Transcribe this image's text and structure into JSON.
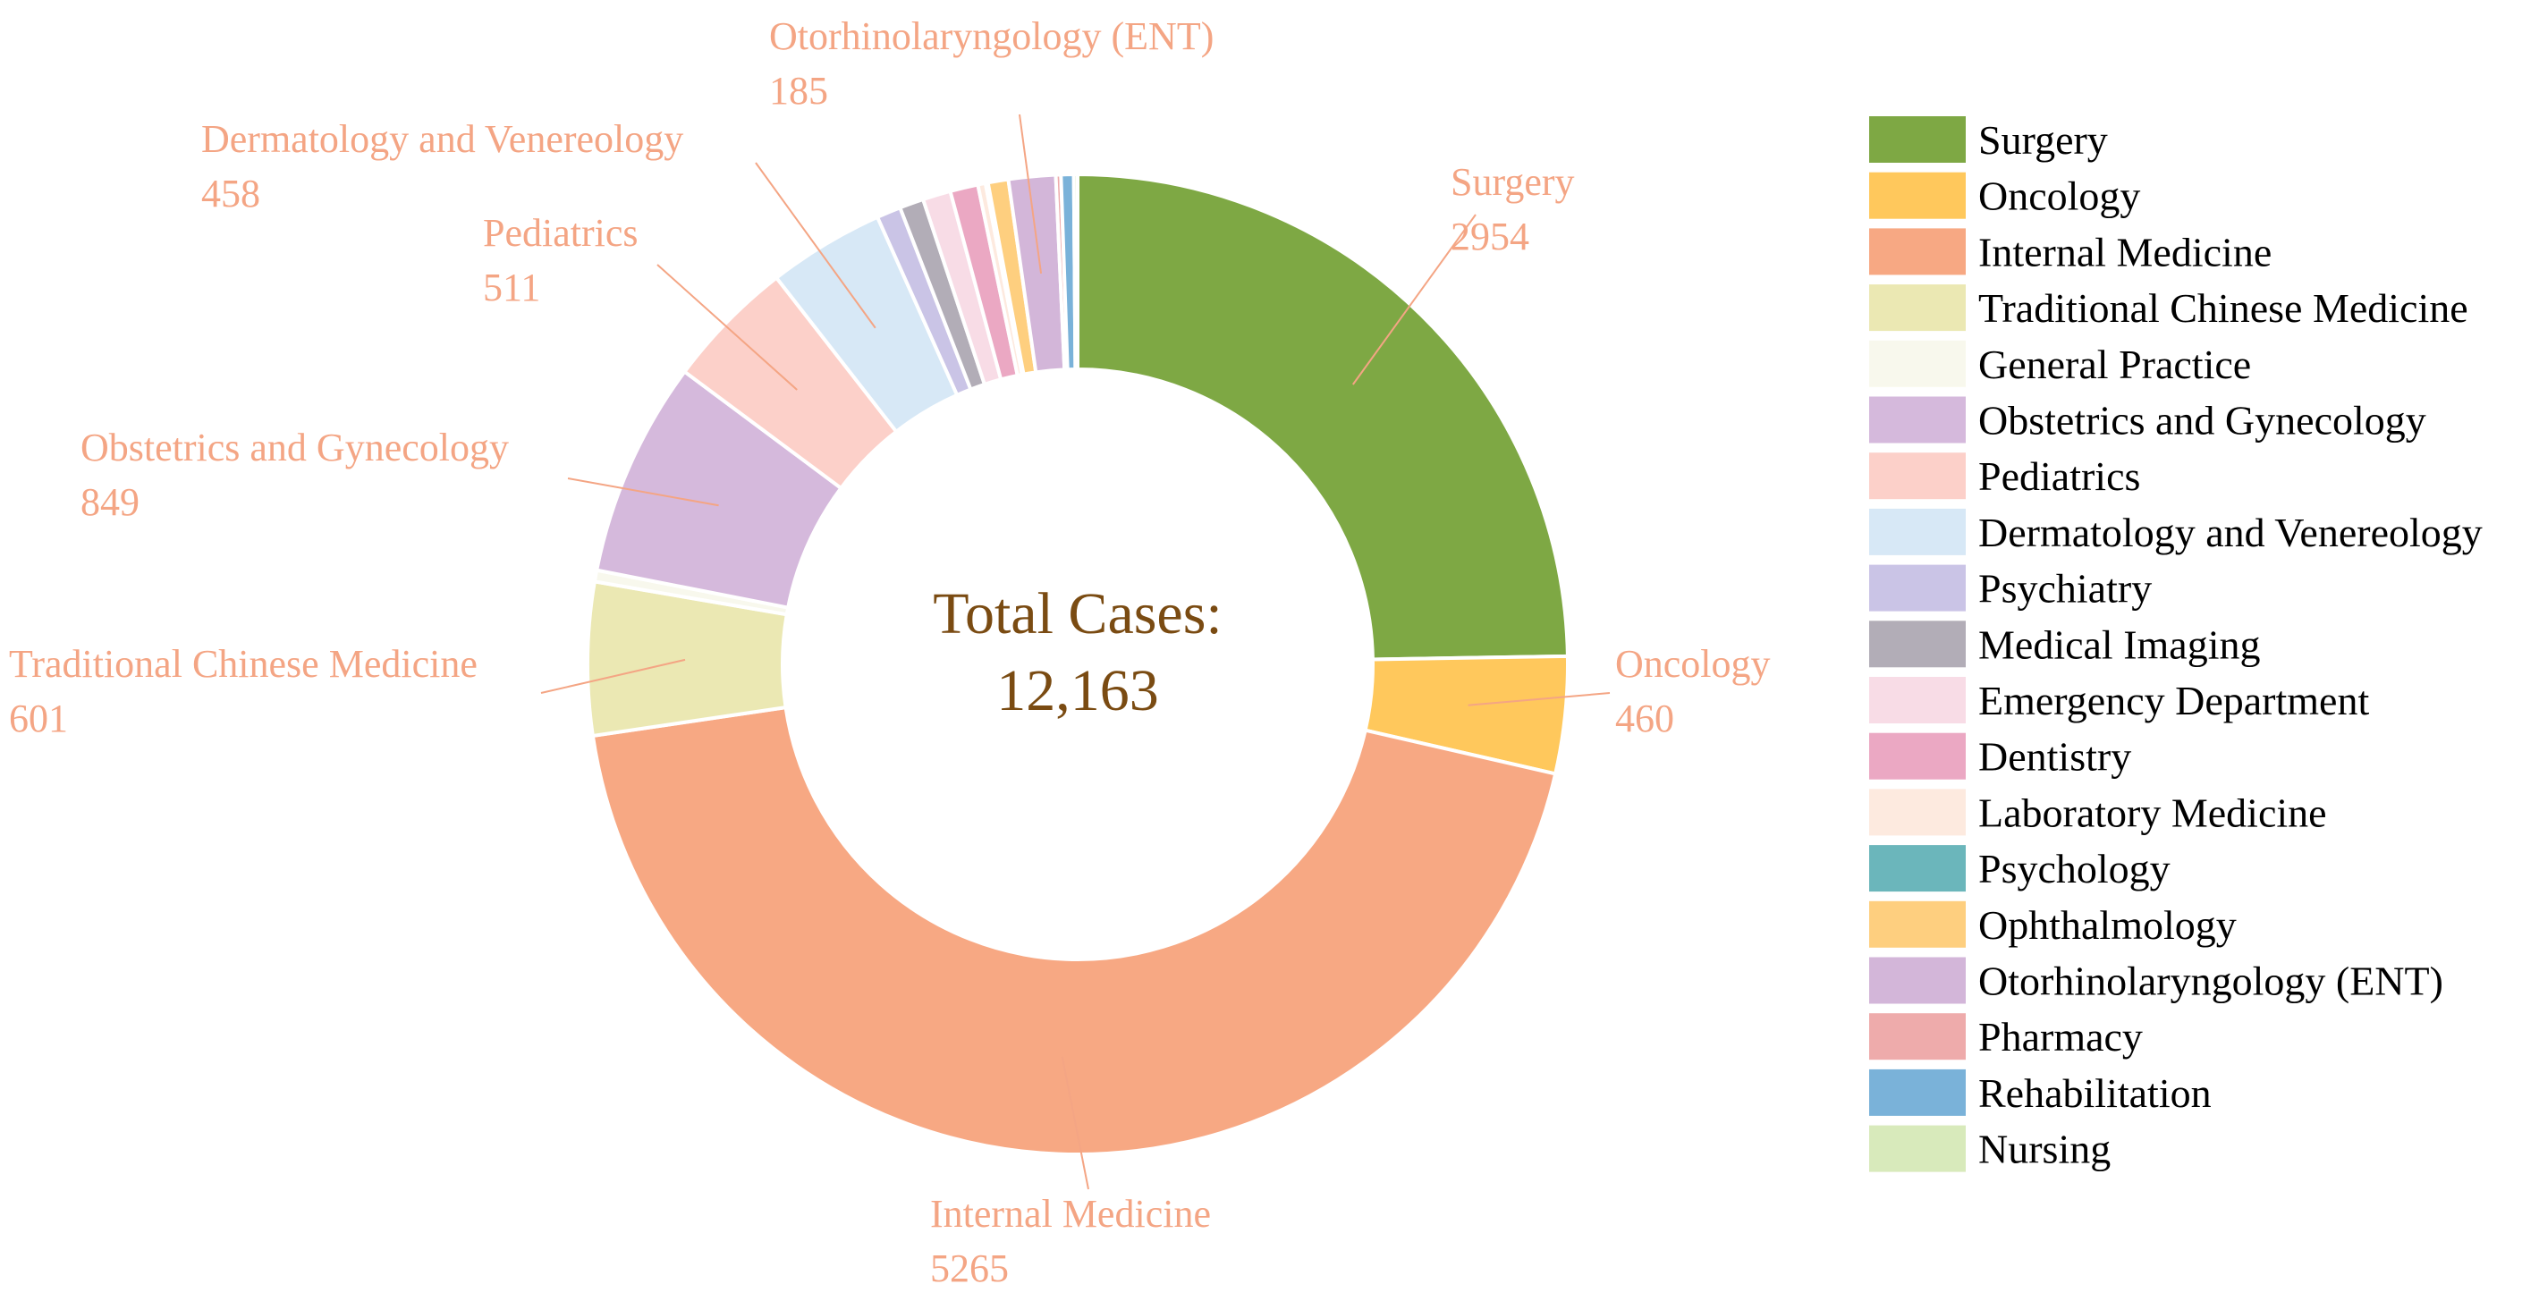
{
  "chart_data": {
    "type": "pie",
    "variant": "donut",
    "center_label": [
      "Total Cases:",
      "12,163"
    ],
    "total": 12163,
    "start_category": "Surgery",
    "direction": "clockwise",
    "legend_position": "right",
    "callout_color": "#f4a584",
    "center_color": "#7a4b12",
    "slices": [
      {
        "label": "Surgery",
        "value": 2954,
        "color": "#7ea844",
        "callout": [
          "Surgery",
          "2954"
        ]
      },
      {
        "label": "Oncology",
        "value": 460,
        "color": "#ffc85c",
        "callout": [
          "Oncology",
          "460"
        ]
      },
      {
        "label": "Internal Medicine",
        "value": 5265,
        "color": "#f7a883",
        "callout": [
          "Internal Medicine",
          "5265"
        ]
      },
      {
        "label": "Traditional Chinese Medicine",
        "value": 601,
        "color": "#ebe8b3",
        "callout": [
          "Traditional Chinese Medicine",
          "601"
        ]
      },
      {
        "label": "General Practice",
        "value": 45,
        "color": "#f8f8ed",
        "callout": null
      },
      {
        "label": "Obstetrics and Gynecology",
        "value": 849,
        "color": "#d5b9dc",
        "callout": [
          "Obstetrics and Gynecology",
          "849"
        ]
      },
      {
        "label": "Pediatrics",
        "value": 511,
        "color": "#fcd0c9",
        "callout": [
          "Pediatrics",
          "511"
        ]
      },
      {
        "label": "Dermatology and Venereology",
        "value": 458,
        "color": "#d7e8f6",
        "callout": [
          "Dermatology and Venereology",
          "458"
        ]
      },
      {
        "label": "Psychiatry",
        "value": 95,
        "color": "#cac4e6",
        "callout": null
      },
      {
        "label": "Medical Imaging",
        "value": 95,
        "color": "#b2adb7",
        "callout": null
      },
      {
        "label": "Emergency Department",
        "value": 110,
        "color": "#f8dce6",
        "callout": null
      },
      {
        "label": "Dentistry",
        "value": 110,
        "color": "#eba8c3",
        "callout": null
      },
      {
        "label": "Laboratory Medicine",
        "value": 30,
        "color": "#fdeadf",
        "callout": null
      },
      {
        "label": "Psychology",
        "value": 10,
        "color": "#6bb6bb",
        "callout": null
      },
      {
        "label": "Ophthalmology",
        "value": 80,
        "color": "#fecf7f",
        "callout": null
      },
      {
        "label": "Otorhinolaryngology (ENT)",
        "value": 185,
        "color": "#d3b6d9",
        "callout": [
          "Otorhinolaryngology (ENT)",
          "185"
        ]
      },
      {
        "label": "Pharmacy",
        "value": 20,
        "color": "#eeabab",
        "callout": null
      },
      {
        "label": "Rehabilitation",
        "value": 50,
        "color": "#7ab2d9",
        "callout": null
      },
      {
        "label": "Nursing",
        "value": 15,
        "color": "#d8eabb",
        "callout": null
      }
    ]
  }
}
